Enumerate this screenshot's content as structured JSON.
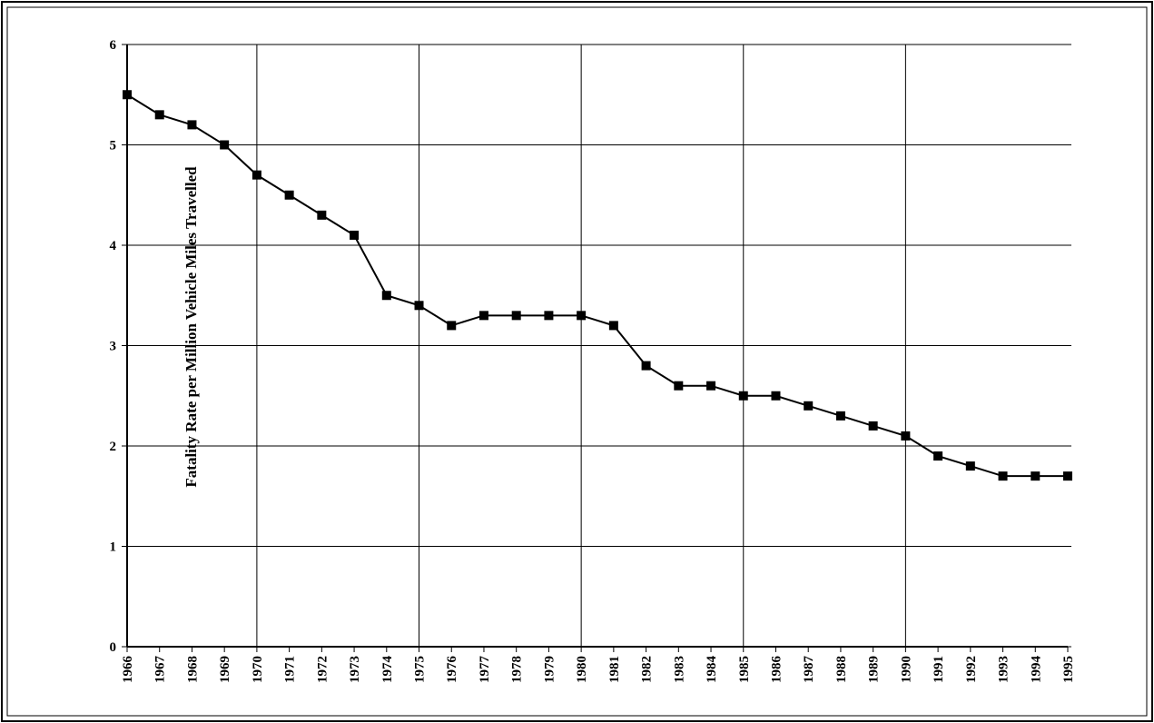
{
  "chart_data": {
    "type": "line",
    "y_label": "Fatality Rate per Million Vehicle Miles Travelled",
    "x": [
      1966,
      1967,
      1968,
      1969,
      1970,
      1971,
      1972,
      1973,
      1974,
      1975,
      1976,
      1977,
      1978,
      1979,
      1980,
      1981,
      1982,
      1983,
      1984,
      1985,
      1986,
      1987,
      1988,
      1989,
      1990,
      1991,
      1992,
      1993,
      1994,
      1995
    ],
    "series": [
      {
        "color": "#000000",
        "values": [
          5.5,
          5.3,
          5.2,
          5.0,
          4.7,
          4.5,
          4.3,
          4.1,
          3.5,
          3.4,
          3.2,
          3.3,
          3.3,
          3.3,
          3.3,
          3.2,
          2.8,
          2.6,
          2.6,
          2.5,
          2.5,
          2.4,
          2.3,
          2.2,
          2.1,
          1.9,
          1.8,
          1.7,
          1.7,
          1.7
        ]
      }
    ],
    "xlim": [
      1966,
      1995
    ],
    "xticks": [
      1966,
      1967,
      1968,
      1969,
      1970,
      1971,
      1972,
      1973,
      1974,
      1975,
      1976,
      1977,
      1978,
      1979,
      1980,
      1981,
      1982,
      1983,
      1984,
      1985,
      1986,
      1987,
      1988,
      1989,
      1990,
      1991,
      1992,
      1993,
      1994,
      1995
    ],
    "xgrid": [
      1970,
      1975,
      1980,
      1985,
      1990
    ],
    "ylim": [
      0,
      6
    ],
    "yticks": [
      0,
      1,
      2,
      3,
      4,
      5,
      6
    ],
    "grid": true
  }
}
